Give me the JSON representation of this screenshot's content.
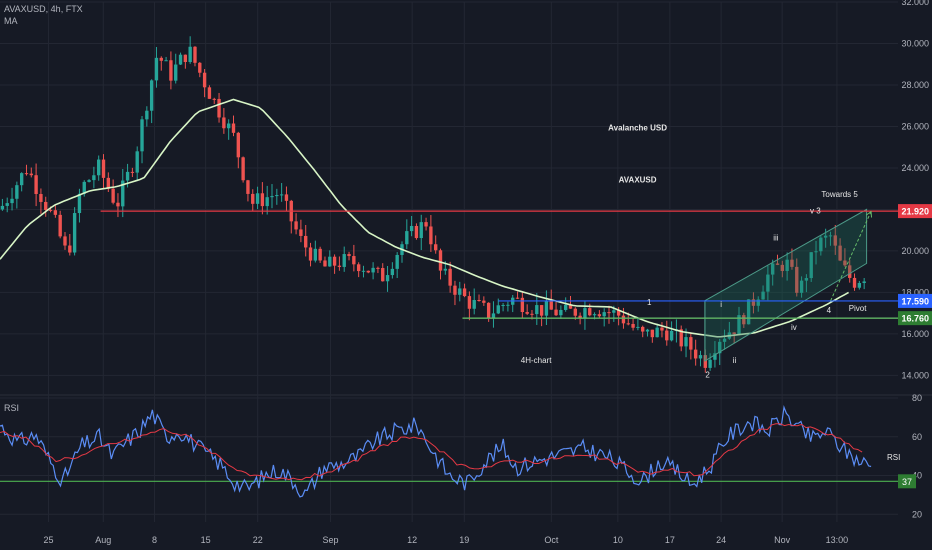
{
  "header": {
    "symbol": "AVAXUSD, 4h, FTX",
    "indicator": "MA"
  },
  "rsi_label": "RSI",
  "colors": {
    "background": "#161a25",
    "up": "#26a69a",
    "down": "#ef5350",
    "ma": "#d8f5c6",
    "resistance": "#e53945",
    "blue_line": "#2962ff",
    "green_line": "#66bb6a",
    "channel": "#1e6e5a",
    "rsi_line": "#5b8df5",
    "rsi_ma": "#e53945",
    "rsi_level": "#4caf50",
    "grid": "#232733",
    "text": "#b2b5be"
  },
  "chart_data": [
    {
      "type": "candlestick",
      "symbol": "AVAXUSD",
      "timeframe": "4h",
      "exchange": "FTX",
      "ylim": [
        13.2,
        32
      ],
      "y_ticks": [
        "32.000",
        "30.000",
        "28.000",
        "26.000",
        "24.000",
        "22.000",
        "20.000",
        "18.000",
        "16.000",
        "14.000"
      ],
      "x_ticks": [
        "25",
        "Aug",
        "8",
        "15",
        "22",
        "Sep",
        "12",
        "19",
        "Oct",
        "10",
        "17",
        "24",
        "Nov",
        "13:00"
      ],
      "x_start": 0,
      "x_end": 1,
      "price_anchors": [
        [
          0.0,
          22.0
        ],
        [
          0.03,
          24.0
        ],
        [
          0.06,
          21.5
        ],
        [
          0.075,
          19.7
        ],
        [
          0.09,
          23.0
        ],
        [
          0.11,
          24.0
        ],
        [
          0.13,
          22.2
        ],
        [
          0.15,
          24.5
        ],
        [
          0.175,
          29.5
        ],
        [
          0.19,
          28.5
        ],
        [
          0.21,
          29.7
        ],
        [
          0.235,
          27.5
        ],
        [
          0.26,
          25.5
        ],
        [
          0.28,
          22.3
        ],
        [
          0.31,
          22.8
        ],
        [
          0.335,
          20.5
        ],
        [
          0.36,
          19.2
        ],
        [
          0.38,
          19.5
        ],
        [
          0.4,
          19.4
        ],
        [
          0.425,
          18.7
        ],
        [
          0.45,
          20.5
        ],
        [
          0.475,
          21.4
        ],
        [
          0.49,
          19.0
        ],
        [
          0.52,
          17.6
        ],
        [
          0.545,
          17.0
        ],
        [
          0.57,
          17.7
        ],
        [
          0.6,
          17.2
        ],
        [
          0.63,
          17.0
        ],
        [
          0.66,
          17.3
        ],
        [
          0.69,
          16.9
        ],
        [
          0.715,
          15.9
        ],
        [
          0.74,
          16.2
        ],
        [
          0.77,
          15.3
        ],
        [
          0.785,
          14.7
        ],
        [
          0.8,
          15.8
        ],
        [
          0.82,
          16.4
        ],
        [
          0.835,
          17.3
        ],
        [
          0.855,
          18.8
        ],
        [
          0.875,
          19.5
        ],
        [
          0.89,
          18.0
        ],
        [
          0.91,
          20.3
        ],
        [
          0.925,
          20.7
        ],
        [
          0.935,
          19.4
        ],
        [
          0.95,
          18.5
        ],
        [
          0.965,
          18.9
        ]
      ],
      "candle_count": 180,
      "ma_anchors": [
        [
          0.0,
          19.6
        ],
        [
          0.03,
          21.2
        ],
        [
          0.06,
          22.2
        ],
        [
          0.1,
          22.9
        ],
        [
          0.13,
          23.1
        ],
        [
          0.16,
          23.5
        ],
        [
          0.19,
          25.3
        ],
        [
          0.22,
          26.7
        ],
        [
          0.26,
          27.3
        ],
        [
          0.29,
          26.9
        ],
        [
          0.32,
          25.5
        ],
        [
          0.35,
          23.9
        ],
        [
          0.38,
          22.2
        ],
        [
          0.41,
          20.9
        ],
        [
          0.44,
          20.2
        ],
        [
          0.47,
          19.7
        ],
        [
          0.5,
          19.35
        ],
        [
          0.53,
          18.8
        ],
        [
          0.56,
          18.3
        ],
        [
          0.6,
          17.8
        ],
        [
          0.64,
          17.35
        ],
        [
          0.68,
          17.3
        ],
        [
          0.72,
          16.6
        ],
        [
          0.76,
          16.1
        ],
        [
          0.8,
          15.85
        ],
        [
          0.84,
          16.05
        ],
        [
          0.88,
          16.6
        ],
        [
          0.92,
          17.4
        ],
        [
          0.945,
          18.0
        ]
      ],
      "resistance": {
        "value": 21.92,
        "label": "21.920",
        "x_start": 0.112
      },
      "blue_level": {
        "value": 17.59,
        "label": "17.590",
        "x_start": 0.555
      },
      "green_level": {
        "value": 16.76,
        "label": "16.760",
        "x_start": 0.515
      },
      "channel": {
        "lower": [
          [
            0.785,
            14.7
          ],
          [
            0.965,
            19.4
          ]
        ],
        "upper": [
          [
            0.785,
            17.6
          ],
          [
            0.965,
            22.0
          ]
        ]
      },
      "projection": [
        [
          0.925,
          17.6
        ],
        [
          0.97,
          21.9
        ]
      ],
      "annotations": [
        {
          "text": "Avalanche USD",
          "x": 0.71,
          "y": 25.8
        },
        {
          "text": "AVAXUSD",
          "x": 0.71,
          "y": 23.3
        },
        {
          "text": "Towards 5",
          "x": 0.935,
          "y": 22.6
        },
        {
          "text": "v 3",
          "x": 0.908,
          "y": 21.8
        },
        {
          "text": "iii",
          "x": 0.864,
          "y": 20.5
        },
        {
          "text": "Pivot",
          "x": 0.955,
          "y": 17.1
        },
        {
          "text": "i",
          "x": 0.803,
          "y": 17.3
        },
        {
          "text": "1",
          "x": 0.723,
          "y": 17.4
        },
        {
          "text": "4",
          "x": 0.923,
          "y": 17.0
        },
        {
          "text": "iv",
          "x": 0.884,
          "y": 16.2
        },
        {
          "text": "ii",
          "x": 0.818,
          "y": 14.6
        },
        {
          "text": "4H-chart",
          "x": 0.597,
          "y": 14.6
        },
        {
          "text": "2",
          "x": 0.788,
          "y": 13.9
        }
      ]
    },
    {
      "type": "line",
      "name": "RSI",
      "ylim": [
        16,
        80
      ],
      "y_ticks": [
        "80",
        "60",
        "40",
        "20"
      ],
      "level": {
        "value": 37,
        "label": "37"
      },
      "rsi_anchors": [
        [
          0.0,
          66
        ],
        [
          0.02,
          57
        ],
        [
          0.04,
          61
        ],
        [
          0.055,
          48
        ],
        [
          0.07,
          37
        ],
        [
          0.09,
          55
        ],
        [
          0.11,
          60
        ],
        [
          0.125,
          50
        ],
        [
          0.14,
          57
        ],
        [
          0.155,
          63
        ],
        [
          0.17,
          72
        ],
        [
          0.185,
          60
        ],
        [
          0.2,
          63
        ],
        [
          0.225,
          53
        ],
        [
          0.245,
          46
        ],
        [
          0.26,
          37
        ],
        [
          0.275,
          33
        ],
        [
          0.295,
          40
        ],
        [
          0.31,
          43
        ],
        [
          0.325,
          38
        ],
        [
          0.34,
          30
        ],
        [
          0.36,
          44
        ],
        [
          0.38,
          46
        ],
        [
          0.4,
          50
        ],
        [
          0.415,
          57
        ],
        [
          0.44,
          63
        ],
        [
          0.465,
          66
        ],
        [
          0.48,
          54
        ],
        [
          0.5,
          40
        ],
        [
          0.52,
          36
        ],
        [
          0.54,
          47
        ],
        [
          0.56,
          55
        ],
        [
          0.575,
          44
        ],
        [
          0.6,
          48
        ],
        [
          0.625,
          51
        ],
        [
          0.65,
          54
        ],
        [
          0.675,
          50
        ],
        [
          0.7,
          42
        ],
        [
          0.715,
          37
        ],
        [
          0.735,
          47
        ],
        [
          0.755,
          42
        ],
        [
          0.77,
          35
        ],
        [
          0.79,
          44
        ],
        [
          0.81,
          60
        ],
        [
          0.835,
          68
        ],
        [
          0.855,
          63
        ],
        [
          0.875,
          72
        ],
        [
          0.89,
          64
        ],
        [
          0.905,
          59
        ],
        [
          0.92,
          63
        ],
        [
          0.94,
          53
        ],
        [
          0.955,
          48
        ],
        [
          0.97,
          45
        ]
      ],
      "rsi_ma_anchors": [
        [
          0.0,
          63
        ],
        [
          0.03,
          59
        ],
        [
          0.06,
          48
        ],
        [
          0.09,
          50
        ],
        [
          0.12,
          56
        ],
        [
          0.15,
          59
        ],
        [
          0.18,
          64
        ],
        [
          0.21,
          60
        ],
        [
          0.24,
          51
        ],
        [
          0.27,
          41
        ],
        [
          0.3,
          38
        ],
        [
          0.33,
          38
        ],
        [
          0.36,
          41
        ],
        [
          0.39,
          46
        ],
        [
          0.42,
          54
        ],
        [
          0.45,
          60
        ],
        [
          0.48,
          57
        ],
        [
          0.51,
          45
        ],
        [
          0.54,
          44
        ],
        [
          0.57,
          48
        ],
        [
          0.6,
          47
        ],
        [
          0.63,
          50
        ],
        [
          0.66,
          50
        ],
        [
          0.69,
          46
        ],
        [
          0.72,
          41
        ],
        [
          0.75,
          43
        ],
        [
          0.78,
          40
        ],
        [
          0.81,
          52
        ],
        [
          0.84,
          62
        ],
        [
          0.87,
          67
        ],
        [
          0.9,
          65
        ],
        [
          0.93,
          60
        ],
        [
          0.96,
          52
        ]
      ]
    }
  ]
}
